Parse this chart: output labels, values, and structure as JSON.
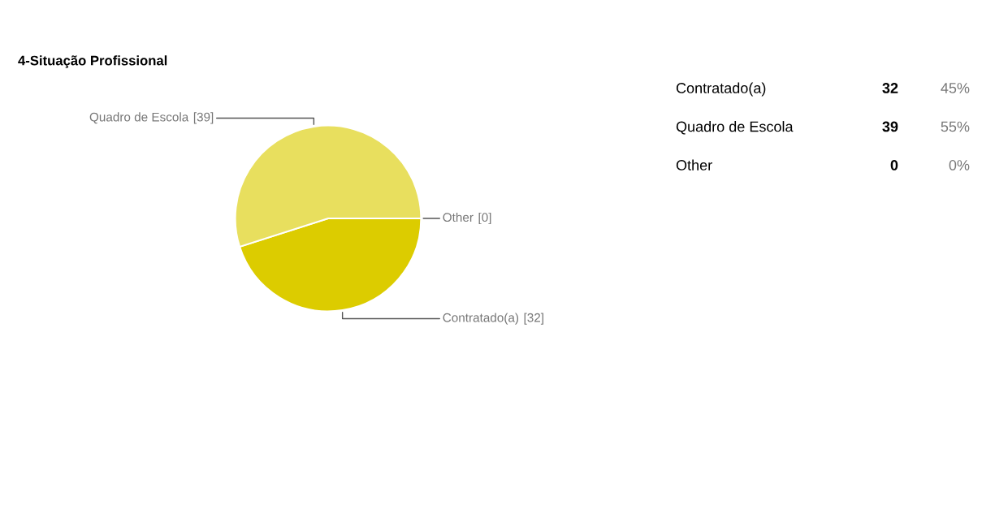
{
  "chart_data": {
    "type": "pie",
    "title": "4-Situação Profissional",
    "categories": [
      "Contratado(a)",
      "Quadro de Escola",
      "Other"
    ],
    "values": [
      32,
      39,
      0
    ],
    "colors": [
      "#dccc00",
      "#e8df5e",
      "#f2ea9a"
    ],
    "value_labels": [
      "[32]",
      "[39]",
      "[0]"
    ],
    "annotations": [
      "Contratado(a)",
      "32",
      "45%",
      "Quadro de Escola",
      "39",
      "55%",
      "Other",
      "0",
      "0%"
    ]
  }
}
